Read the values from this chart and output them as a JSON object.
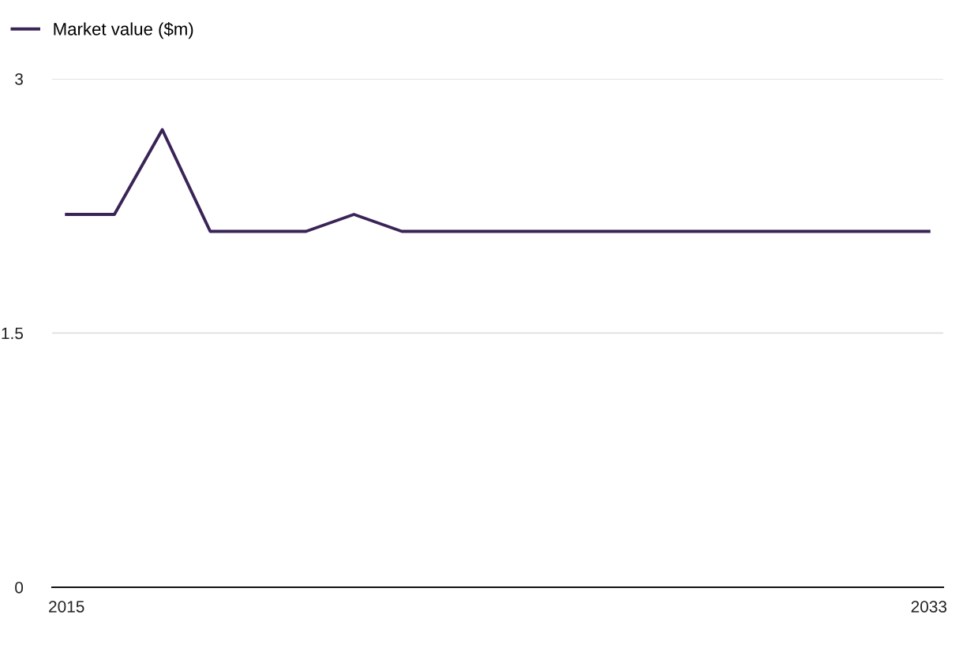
{
  "chart_data": {
    "type": "line",
    "x": [
      2015,
      2016,
      2017,
      2018,
      2019,
      2020,
      2021,
      2022,
      2023,
      2024,
      2025,
      2026,
      2027,
      2028,
      2029,
      2030,
      2031,
      2032,
      2033
    ],
    "series": [
      {
        "name": "Market value ($m)",
        "color": "#3a2456",
        "values": [
          2.2,
          2.2,
          2.7,
          2.1,
          2.1,
          2.1,
          2.2,
          2.1,
          2.1,
          2.1,
          2.1,
          2.1,
          2.1,
          2.1,
          2.1,
          2.1,
          2.1,
          2.1,
          2.1
        ]
      }
    ],
    "xlim": [
      2014.7,
      2033.3
    ],
    "xticks": [
      2015,
      2033
    ],
    "ylim": [
      0,
      3
    ],
    "yticks": [
      0,
      1.5,
      3
    ],
    "grid": "y",
    "legend": "top left",
    "marker": "none",
    "line_style": "solid"
  }
}
